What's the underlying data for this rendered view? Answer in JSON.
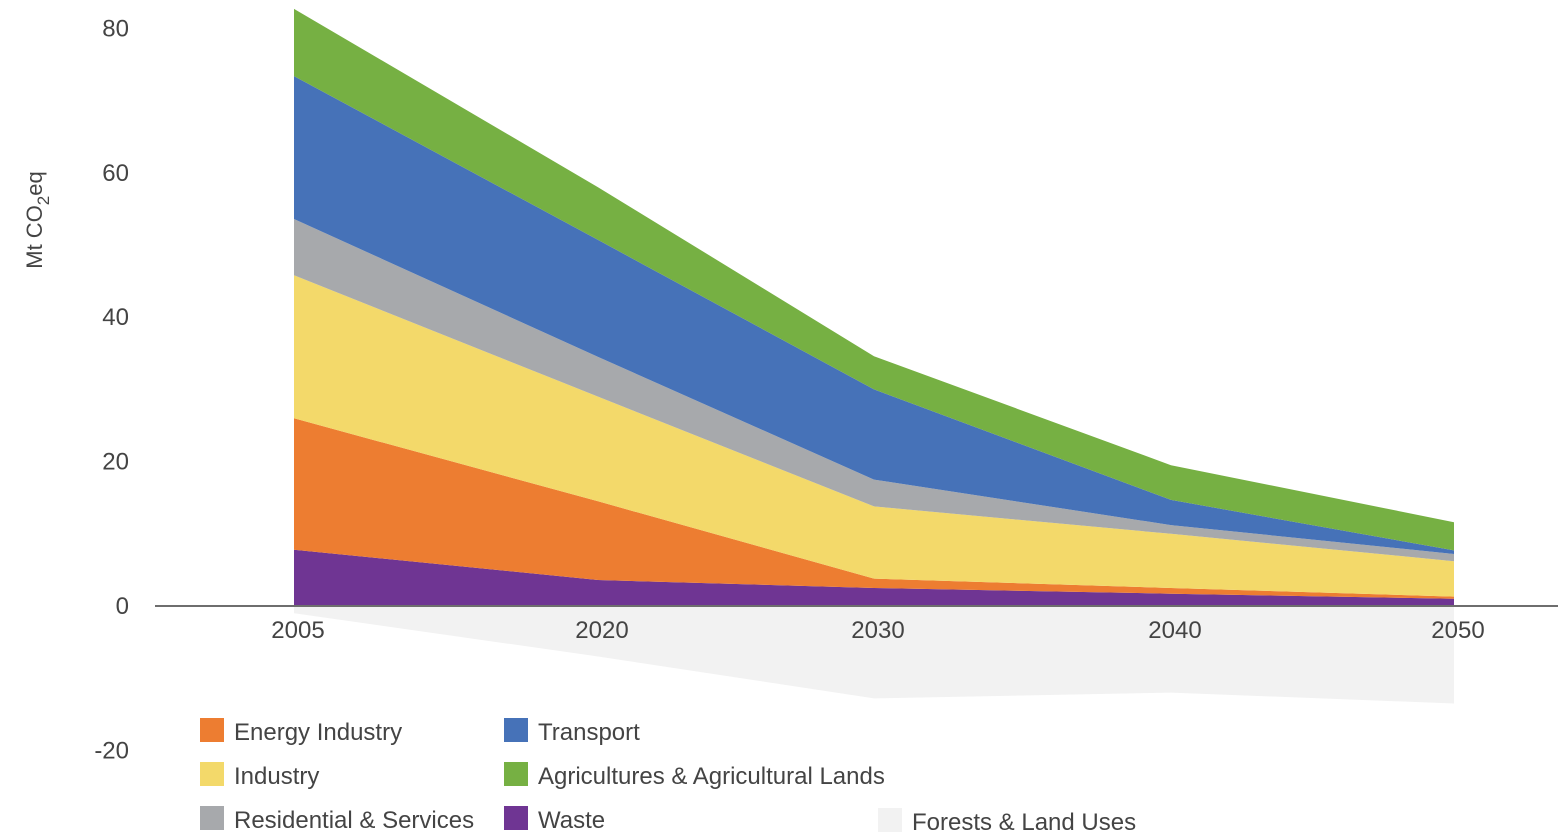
{
  "chart_data": {
    "type": "area",
    "stacked": true,
    "ylabel": "Mt CO2eq",
    "ylabel_parts": {
      "prefix": "Mt CO",
      "subscript": "2",
      "suffix": "eq"
    },
    "x": [
      "2005",
      "2020",
      "2030",
      "2040",
      "2050"
    ],
    "ylim": [
      -20,
      80
    ],
    "yticks": [
      "80",
      "60",
      "40",
      "20",
      "0",
      "-20"
    ],
    "grid": false,
    "series": [
      {
        "name": "Waste",
        "color": "#6f3593",
        "values": [
          7.8,
          3.6,
          2.5,
          1.7,
          1.0
        ]
      },
      {
        "name": "Energy Industry",
        "color": "#ed7d31",
        "values": [
          18.2,
          10.9,
          1.3,
          0.8,
          0.3
        ]
      },
      {
        "name": "Industry",
        "color": "#f3d96a",
        "values": [
          19.8,
          14.5,
          10.0,
          7.5,
          4.9
        ]
      },
      {
        "name": "Residential & Services",
        "color": "#a7a9ac",
        "values": [
          7.8,
          5.5,
          3.7,
          1.2,
          1.0
        ]
      },
      {
        "name": "Transport",
        "color": "#4672b8",
        "values": [
          19.8,
          16.2,
          12.5,
          3.5,
          0.5
        ]
      },
      {
        "name": "Agricultures & Agricultural Lands",
        "color": "#76b043",
        "values": [
          9.3,
          7.3,
          4.6,
          4.8,
          3.9
        ]
      },
      {
        "name": "Forests & Land Uses",
        "color": "#f2f2f2",
        "values": [
          -1.0,
          -7.0,
          -12.8,
          -12.0,
          -13.5
        ]
      }
    ],
    "legend": [
      {
        "label": "Energy Industry",
        "color": "#ed7d31"
      },
      {
        "label": "Transport",
        "color": "#4672b8"
      },
      {
        "label": "Industry",
        "color": "#f3d96a"
      },
      {
        "label": "Agricultures & Agricultural Lands",
        "color": "#76b043"
      },
      {
        "label": "Residential & Services",
        "color": "#a7a9ac"
      },
      {
        "label": "Waste",
        "color": "#6f3593"
      },
      {
        "label": "Forests & Land Uses",
        "color": "#f2f2f2"
      }
    ]
  }
}
